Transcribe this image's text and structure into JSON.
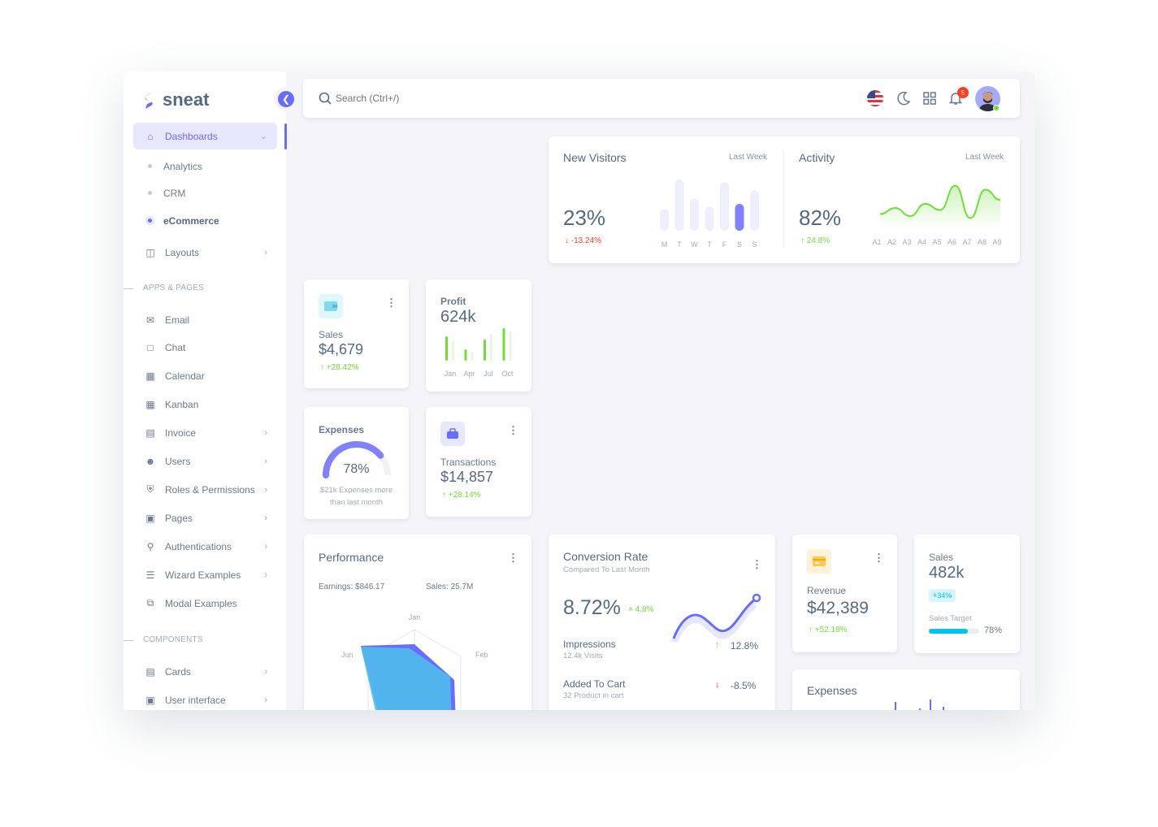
{
  "brand": {
    "name": "sneat"
  },
  "sidebar": {
    "dashboards": "Dashboards",
    "sub": [
      "Analytics",
      "CRM",
      "eCommerce"
    ],
    "layouts": "Layouts",
    "apps_header": "APPS & PAGES",
    "apps": [
      {
        "label": "Email",
        "icon": "mail"
      },
      {
        "label": "Chat",
        "icon": "chat"
      },
      {
        "label": "Calendar",
        "icon": "calendar"
      },
      {
        "label": "Kanban",
        "icon": "grid"
      },
      {
        "label": "Invoice",
        "icon": "file",
        "chev": true
      },
      {
        "label": "Users",
        "icon": "user",
        "chev": true
      },
      {
        "label": "Roles & Permissions",
        "icon": "shield",
        "chev": true
      },
      {
        "label": "Pages",
        "icon": "page",
        "chev": true
      },
      {
        "label": "Authentications",
        "icon": "lock",
        "chev": true
      },
      {
        "label": "Wizard Examples",
        "icon": "list",
        "chev": true
      },
      {
        "label": "Modal Examples",
        "icon": "window"
      }
    ],
    "components_header": "COMPONENTS",
    "components": [
      {
        "label": "Cards",
        "icon": "cards",
        "chev": true
      },
      {
        "label": "User interface",
        "icon": "box",
        "chev": true
      }
    ]
  },
  "navbar": {
    "search_placeholder": "Search (Ctrl+/)",
    "notifications": "5"
  },
  "visitors": {
    "title": "New Visitors",
    "period": "Last Week",
    "value": "23%",
    "change": "-13.24%",
    "days": [
      "M",
      "T",
      "W",
      "T",
      "F",
      "S",
      "S"
    ],
    "values": [
      40,
      95,
      60,
      45,
      90,
      50,
      75
    ],
    "active_index": 5
  },
  "activity": {
    "title": "Activity",
    "period": "Last Week",
    "value": "82%",
    "change": "24.8%",
    "labels": [
      "A1",
      "A2",
      "A3",
      "A4",
      "A5",
      "A6",
      "A7",
      "A8",
      "A9"
    ],
    "values": [
      25,
      40,
      20,
      50,
      35,
      95,
      15,
      85,
      60
    ]
  },
  "sales_small": {
    "label": "Sales",
    "value": "$4,679",
    "change": "+28.42%"
  },
  "profit": {
    "label": "Profit",
    "value": "624k",
    "months": [
      "Jan",
      "Apr",
      "Jul",
      "Oct"
    ],
    "primary": [
      30,
      14,
      26,
      40
    ],
    "secondary": [
      25,
      11,
      33,
      36
    ]
  },
  "expenses_small": {
    "label": "Expenses",
    "percent": 78,
    "percent_label": "78%",
    "note_line1": "$21k Expenses more",
    "note_line2": "than last month"
  },
  "transactions": {
    "label": "Transactions",
    "value": "$14,857",
    "change": "+28.14%"
  },
  "performance": {
    "title": "Performance",
    "earnings": "Earnings: $846.17",
    "sales": "Sales: 25.7M",
    "axes": [
      "Jan",
      "Feb",
      "Jun"
    ]
  },
  "conversion": {
    "title": "Conversion Rate",
    "subtitle": "Compared To Last Month",
    "value": "8.72%",
    "change": "4.8%",
    "rows": [
      {
        "label": "Impressions",
        "sub": "12.4k Visits",
        "value": "12.8%",
        "dir": "up"
      },
      {
        "label": "Added To Cart",
        "sub": "32 Product in cart",
        "value": "-8.5%",
        "dir": "down"
      }
    ]
  },
  "revenue": {
    "label": "Revenue",
    "value": "$42,389",
    "change": "+52.18%"
  },
  "sales_target": {
    "label": "Sales",
    "value": "482k",
    "badge": "+34%",
    "target_label": "Sales Target",
    "percent": 78,
    "percent_label": "78%"
  },
  "expenses_bottom": {
    "title": "Expenses"
  },
  "colors": {
    "primary": "#696cff",
    "success": "#71dd37",
    "danger": "#ff3e1d",
    "info": "#03c3ec",
    "warning": "#ffab00"
  }
}
